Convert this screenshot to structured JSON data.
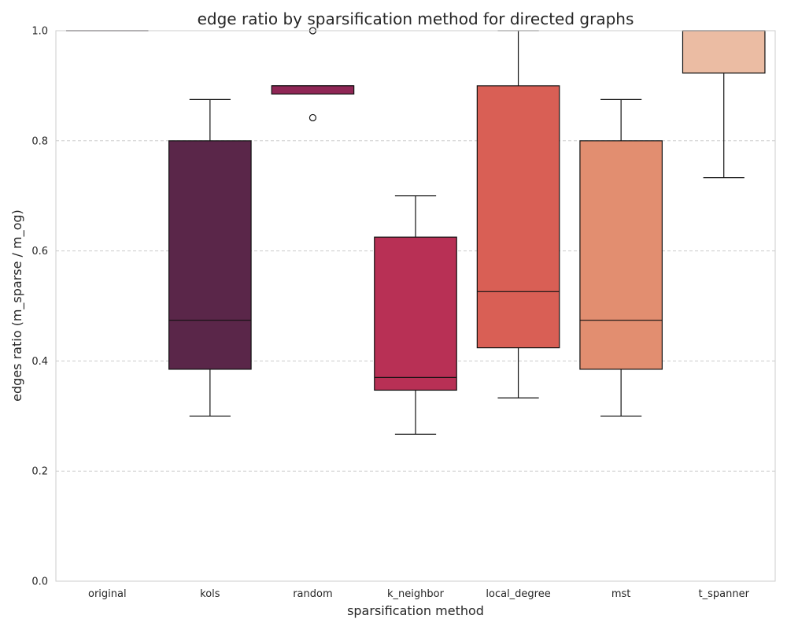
{
  "chart_data": {
    "type": "box",
    "title": "edge ratio by sparsification method for directed graphs",
    "xlabel": "sparsification method",
    "ylabel": "edges ratio (m_sparse / m_og)",
    "ylim": [
      0,
      1
    ],
    "yticks": [
      0.0,
      0.2,
      0.4,
      0.6,
      0.8,
      1.0
    ],
    "ytick_labels": [
      "0.0",
      "0.2",
      "0.4",
      "0.6",
      "0.8",
      "1.0"
    ],
    "grid": "horizontal dashed",
    "categories": [
      "original",
      "kols",
      "random",
      "k_neighbor",
      "local_degree",
      "mst",
      "t_spanner"
    ],
    "boxes": [
      {
        "category": "original",
        "whisker_low": 1.0,
        "q1": 1.0,
        "median": 1.0,
        "q3": 1.0,
        "whisker_high": 1.0,
        "outliers": [],
        "color": "#2e1e3b"
      },
      {
        "category": "kols",
        "whisker_low": 0.3,
        "q1": 0.385,
        "median": 0.474,
        "q3": 0.8,
        "whisker_high": 0.875,
        "outliers": [],
        "color": "#5a2649"
      },
      {
        "category": "random",
        "whisker_low": 0.885,
        "q1": 0.885,
        "median": 0.9,
        "q3": 0.9,
        "whisker_high": 0.9,
        "outliers": [
          1.0,
          0.842
        ],
        "color": "#8f2655"
      },
      {
        "category": "k_neighbor",
        "whisker_low": 0.267,
        "q1": 0.347,
        "median": 0.37,
        "q3": 0.625,
        "whisker_high": 0.7,
        "outliers": [],
        "color": "#b83055"
      },
      {
        "category": "local_degree",
        "whisker_low": 0.333,
        "q1": 0.424,
        "median": 0.526,
        "q3": 0.9,
        "whisker_high": 1.0,
        "outliers": [],
        "color": "#d95f55"
      },
      {
        "category": "mst",
        "whisker_low": 0.3,
        "q1": 0.385,
        "median": 0.474,
        "q3": 0.8,
        "whisker_high": 0.875,
        "outliers": [],
        "color": "#e28e70"
      },
      {
        "category": "t_spanner",
        "whisker_low": 0.733,
        "q1": 0.923,
        "median": 1.0,
        "q3": 1.0,
        "whisker_high": 1.0,
        "outliers": [],
        "color": "#ebbca3"
      }
    ]
  }
}
